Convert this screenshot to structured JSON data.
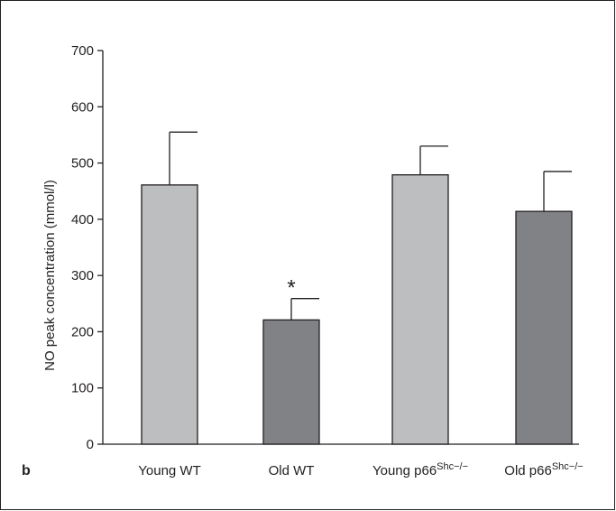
{
  "panel_label": "b",
  "chart_data": {
    "type": "bar",
    "ylabel": "NO peak concentration (mmol/l)",
    "xlabel": "",
    "ylim": [
      0,
      700
    ],
    "yticks": [
      0,
      100,
      200,
      300,
      400,
      500,
      600,
      700
    ],
    "categories": [
      {
        "label": "Young WT",
        "sup": ""
      },
      {
        "label": "Old WT",
        "sup": ""
      },
      {
        "label": "Young p66",
        "sup": "Shc−/−"
      },
      {
        "label": "Old p66",
        "sup": "Shc−/−"
      }
    ],
    "values": [
      461,
      221,
      479,
      414
    ],
    "errors": [
      94,
      38,
      51,
      71
    ],
    "colors": [
      "#bcbec0",
      "#808285",
      "#bcbec0",
      "#808285"
    ],
    "annotations": [
      {
        "category_index": 1,
        "text": "*"
      }
    ]
  }
}
